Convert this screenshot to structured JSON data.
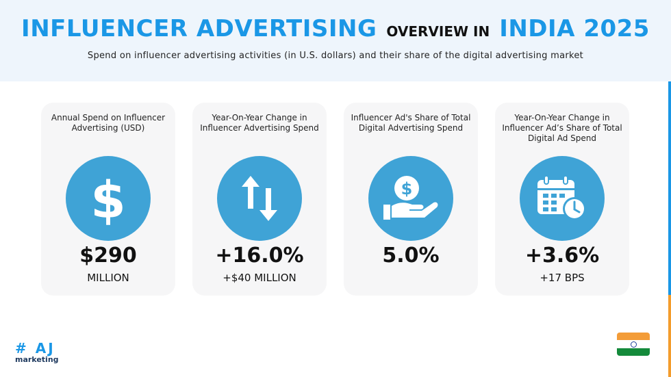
{
  "header": {
    "title_part1": "INFLUENCER ADVERTISING",
    "title_part2": "OVERVIEW IN",
    "title_part3": "INDIA 2025",
    "subtitle": "Spend on influencer advertising activities (in U.S. dollars) and their share of the digital advertising market"
  },
  "colors": {
    "accent_blue": "#1a97e6",
    "circle_blue": "#3fa3d6",
    "header_bg": "#eef5fc",
    "card_bg": "#f6f6f7",
    "accent_orange": "#f39c2c"
  },
  "cards": [
    {
      "label": "Annual Spend on Influencer Advertising (USD)",
      "icon": "dollar-sign-icon",
      "value": "$290",
      "sub": "MILLION"
    },
    {
      "label": "Year-On-Year Change in Influencer Advertising Spend",
      "icon": "up-down-arrows-icon",
      "value": "+16.0%",
      "sub": "+$40 MILLION"
    },
    {
      "label": "Influencer Ad's Share of Total Digital Advertising Spend",
      "icon": "hand-coin-icon",
      "value": "5.0%",
      "sub": ""
    },
    {
      "label": "Year-On-Year Change in Influencer Ad’s Share of Total Digital Ad Spend",
      "icon": "calendar-clock-icon",
      "value": "+3.6%",
      "sub": "+17 BPS"
    }
  ],
  "logo": {
    "top": "# AJ",
    "bottom": "marketing"
  },
  "flag": {
    "icon": "india-flag-icon"
  }
}
